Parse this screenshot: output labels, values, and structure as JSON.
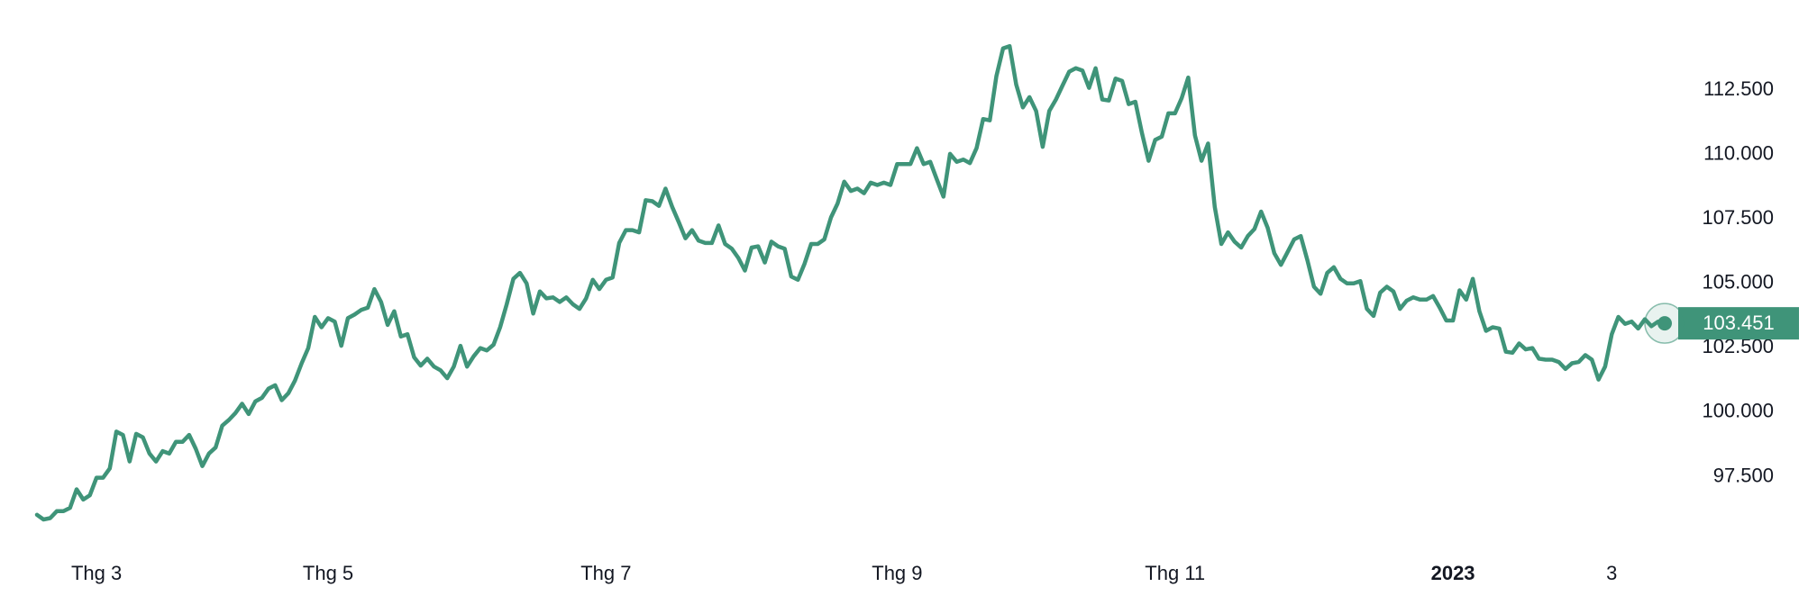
{
  "chart_data": {
    "type": "line",
    "color": "#3f9479",
    "values": [
      96.02,
      95.84,
      95.89,
      96.16,
      96.16,
      96.29,
      97.01,
      96.61,
      96.78,
      97.46,
      97.46,
      97.82,
      99.25,
      99.12,
      98.09,
      99.16,
      99.03,
      98.4,
      98.09,
      98.49,
      98.4,
      98.85,
      98.85,
      99.12,
      98.58,
      97.91,
      98.4,
      98.63,
      99.48,
      99.7,
      99.97,
      100.33,
      99.93,
      100.42,
      100.56,
      100.92,
      101.05,
      100.47,
      100.74,
      101.23,
      101.9,
      102.49,
      103.7,
      103.3,
      103.65,
      103.52,
      102.58,
      103.65,
      103.79,
      103.97,
      104.06,
      104.78,
      104.28,
      103.39,
      103.92,
      102.94,
      103.03,
      102.13,
      101.81,
      102.08,
      101.77,
      101.63,
      101.32,
      101.77,
      102.58,
      101.77,
      102.17,
      102.49,
      102.4,
      102.62,
      103.3,
      104.19,
      105.18,
      105.41,
      105.0,
      103.83,
      104.69,
      104.42,
      104.46,
      104.28,
      104.46,
      104.19,
      104.01,
      104.42,
      105.14,
      104.78,
      105.14,
      105.23,
      106.57,
      107.07,
      107.07,
      106.98,
      108.23,
      108.19,
      108.01,
      108.68,
      107.97,
      107.38,
      106.75,
      107.07,
      106.66,
      106.57,
      106.57,
      107.25,
      106.53,
      106.35,
      105.99,
      105.5,
      106.39,
      106.44,
      105.81,
      106.62,
      106.44,
      106.35,
      105.27,
      105.14,
      105.76,
      106.53,
      106.53,
      106.71,
      107.56,
      108.1,
      108.95,
      108.59,
      108.68,
      108.5,
      108.91,
      108.82,
      108.91,
      108.82,
      109.63,
      109.63,
      109.63,
      110.25,
      109.63,
      109.72,
      109.04,
      108.37,
      110.03,
      109.72,
      109.81,
      109.67,
      110.25,
      111.38,
      111.33,
      113.04,
      114.12,
      114.21,
      112.72,
      111.83,
      112.23,
      111.69,
      110.3,
      111.69,
      112.14,
      112.68,
      113.22,
      113.35,
      113.26,
      112.59,
      113.35,
      112.14,
      112.1,
      112.95,
      112.86,
      111.96,
      112.05,
      110.84,
      109.76,
      110.57,
      110.7,
      111.6,
      111.6,
      112.19,
      112.99,
      110.75,
      109.76,
      110.43,
      107.97,
      106.53,
      106.98,
      106.62,
      106.39,
      106.84,
      107.11,
      107.79,
      107.16,
      106.17,
      105.72,
      106.21,
      106.71,
      106.84,
      105.9,
      104.87,
      104.6,
      105.41,
      105.63,
      105.18,
      105.0,
      105.0,
      105.09,
      104.01,
      103.74,
      104.64,
      104.87,
      104.69,
      104.01,
      104.33,
      104.46,
      104.37,
      104.37,
      104.51,
      104.06,
      103.56,
      103.56,
      104.73,
      104.37,
      105.18,
      103.92,
      103.16,
      103.3,
      103.25,
      102.35,
      102.31,
      102.67,
      102.44,
      102.49,
      102.08,
      102.04,
      102.04,
      101.95,
      101.68,
      101.9,
      101.95,
      102.22,
      102.04,
      101.27,
      101.77,
      103.03,
      103.7,
      103.43,
      103.52,
      103.25,
      103.61,
      103.34,
      103.52,
      103.451
    ],
    "ylim": [
      95,
      116
    ],
    "yticks": [
      {
        "value": 97.5,
        "label": "97.500"
      },
      {
        "value": 100,
        "label": "100.000"
      },
      {
        "value": 102.5,
        "label": "102.500"
      },
      {
        "value": 105,
        "label": "105.000"
      },
      {
        "value": 107.5,
        "label": "107.500"
      },
      {
        "value": 110,
        "label": "110.000"
      },
      {
        "value": 112.5,
        "label": "112.500"
      }
    ],
    "xticks": [
      {
        "value": 9,
        "label": "Thg 3"
      },
      {
        "value": 44,
        "label": "Thg 5"
      },
      {
        "value": 86,
        "label": "Thg 7"
      },
      {
        "value": 130,
        "label": "Thg 9"
      },
      {
        "value": 172,
        "label": "Thg 11"
      },
      {
        "value": 214,
        "label": "2023"
      },
      {
        "value": 238,
        "label": "3"
      }
    ],
    "grid": false
  }
}
